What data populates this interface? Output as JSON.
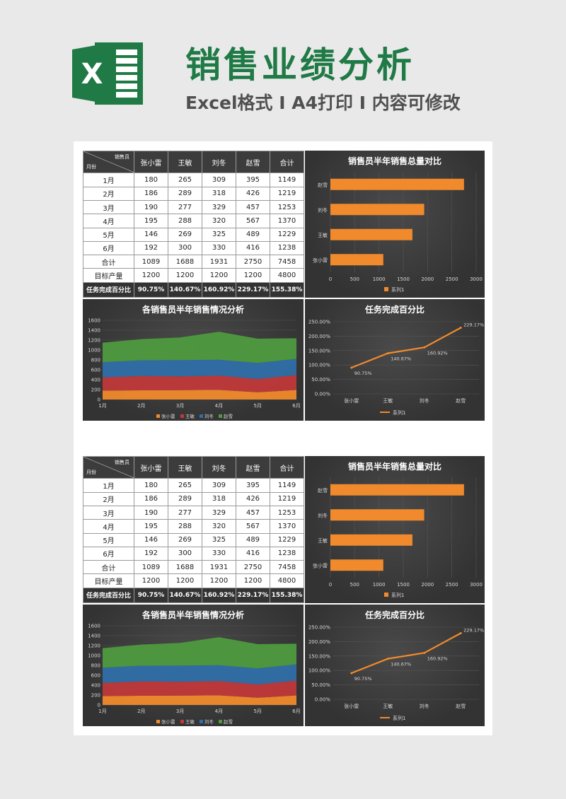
{
  "header": {
    "logo_letter": "X",
    "title": "销售业绩分析",
    "subtitle": "Excel格式 Ⅰ A4打印 Ⅰ 内容可修改"
  },
  "table": {
    "corner_top": "销售员",
    "corner_bottom": "月份",
    "columns": [
      "张小雷",
      "王敏",
      "刘冬",
      "赵雪",
      "合计"
    ],
    "rows": [
      {
        "label": "1月",
        "values": [
          "180",
          "265",
          "309",
          "395",
          "1149"
        ]
      },
      {
        "label": "2月",
        "values": [
          "186",
          "289",
          "318",
          "426",
          "1219"
        ]
      },
      {
        "label": "3月",
        "values": [
          "190",
          "277",
          "329",
          "457",
          "1253"
        ]
      },
      {
        "label": "4月",
        "values": [
          "195",
          "288",
          "320",
          "567",
          "1370"
        ]
      },
      {
        "label": "5月",
        "values": [
          "146",
          "269",
          "325",
          "489",
          "1229"
        ]
      },
      {
        "label": "6月",
        "values": [
          "192",
          "300",
          "330",
          "416",
          "1238"
        ]
      },
      {
        "label": "合计",
        "values": [
          "1089",
          "1688",
          "1931",
          "2750",
          "7458"
        ]
      },
      {
        "label": "目标产量",
        "values": [
          "1200",
          "1200",
          "1200",
          "1200",
          "4800"
        ]
      }
    ],
    "percent_row": {
      "label": "任务完成百分比",
      "values": [
        "90.75%",
        "140.67%",
        "160.92%",
        "229.17%",
        "155.38%"
      ]
    }
  },
  "chart_data": [
    {
      "type": "bar",
      "orientation": "horizontal",
      "title": "销售员半年销售总量对比",
      "categories": [
        "张小雷",
        "王敏",
        "刘冬",
        "赵雪"
      ],
      "series": [
        {
          "name": "系列1",
          "values": [
            1089,
            1688,
            1931,
            2750
          ]
        }
      ],
      "xlim": [
        0,
        3000
      ],
      "xticks": [
        "0",
        "500",
        "1000",
        "1500",
        "2000",
        "2500",
        "3000"
      ],
      "legend": "bottom",
      "color": "#f08a2c"
    },
    {
      "type": "area",
      "stacked": true,
      "title": "各销售员半年销售情况分析",
      "categories": [
        "1月",
        "2月",
        "3月",
        "4月",
        "5月",
        "6月"
      ],
      "series": [
        {
          "name": "张小雷",
          "values": [
            180,
            186,
            190,
            195,
            146,
            192
          ],
          "color": "#f08a2c"
        },
        {
          "name": "王敏",
          "values": [
            265,
            289,
            277,
            288,
            269,
            300
          ],
          "color": "#c0393b"
        },
        {
          "name": "刘冬",
          "values": [
            309,
            318,
            329,
            320,
            325,
            330
          ],
          "color": "#2f6fa8"
        },
        {
          "name": "赵雪",
          "values": [
            395,
            426,
            457,
            567,
            489,
            416
          ],
          "color": "#4e9a3e"
        }
      ],
      "ylim": [
        0,
        1600
      ],
      "yticks": [
        "0",
        "200",
        "400",
        "600",
        "800",
        "1000",
        "1200",
        "1400",
        "1600"
      ],
      "legend": "bottom"
    },
    {
      "type": "line",
      "title": "任务完成百分比",
      "categories": [
        "张小雷",
        "王敏",
        "刘冬",
        "赵雪"
      ],
      "series": [
        {
          "name": "系列1",
          "values": [
            90.75,
            140.67,
            160.92,
            229.17
          ],
          "labels": [
            "90.75%",
            "140.67%",
            "160.92%",
            "229.17%"
          ]
        }
      ],
      "ylim": [
        0,
        250
      ],
      "yticks": [
        "0.00%",
        "50.00%",
        "100.00%",
        "150.00%",
        "200.00%",
        "250.00%"
      ],
      "legend": "bottom",
      "color": "#f08a2c"
    }
  ],
  "colors": {
    "brand_green": "#1f7a45",
    "panel_bg": "#3a3a3a",
    "accent_orange": "#f08a2c"
  }
}
